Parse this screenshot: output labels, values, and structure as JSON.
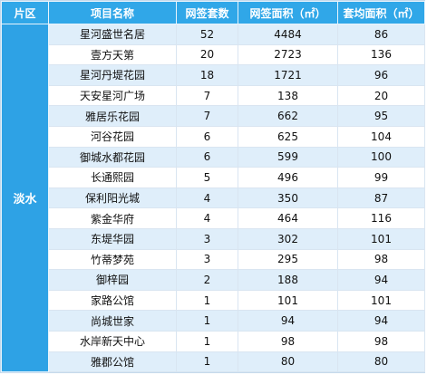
{
  "headers": {
    "region": "片区",
    "project": "项目名称",
    "count": "网签套数",
    "area": "网签面积（㎡）",
    "avg": "套均面积（㎡）"
  },
  "region_label": "淡水",
  "rows": [
    [
      "星河盛世名居",
      "52",
      "4484",
      "86"
    ],
    [
      "壹方天第",
      "20",
      "2723",
      "136"
    ],
    [
      "星河丹堤花园",
      "18",
      "1721",
      "96"
    ],
    [
      "天安星河广场",
      "7",
      "138",
      "20"
    ],
    [
      "雅居乐花园",
      "7",
      "662",
      "95"
    ],
    [
      "河谷花园",
      "6",
      "625",
      "104"
    ],
    [
      "御城水都花园",
      "6",
      "599",
      "100"
    ],
    [
      "长通熙园",
      "5",
      "496",
      "99"
    ],
    [
      "保利阳光城",
      "4",
      "350",
      "87"
    ],
    [
      "紫金华府",
      "4",
      "464",
      "116"
    ],
    [
      "东堤华园",
      "3",
      "302",
      "101"
    ],
    [
      "竹蒂梦苑",
      "3",
      "295",
      "98"
    ],
    [
      "御梓园",
      "2",
      "188",
      "94"
    ],
    [
      "家路公馆",
      "1",
      "101",
      "101"
    ],
    [
      "尚城世家",
      "1",
      "94",
      "94"
    ],
    [
      "水岸新天中心",
      "1",
      "98",
      "98"
    ],
    [
      "雅郡公馆",
      "1",
      "80",
      "80"
    ]
  ],
  "colors": {
    "header_bg": "#30a7e8",
    "region_bg": "#2ea2e5",
    "row_stripe": "#dfeefa",
    "row_plain": "#ffffff"
  }
}
